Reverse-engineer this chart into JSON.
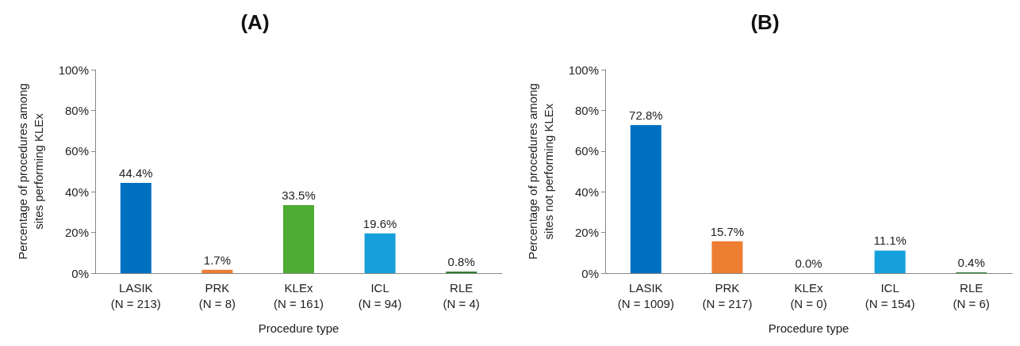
{
  "chart_data": [
    {
      "type": "bar",
      "title": "(A)",
      "xlabel": "Procedure type",
      "ylabel": "Percentage of procedures among\nsites performing KLEx",
      "categories": [
        "LASIK\n(N = 213)",
        "PRK\n(N = 8)",
        "KLEx\n(N = 161)",
        "ICL\n(N = 94)",
        "RLE\n(N = 4)"
      ],
      "values": [
        44.4,
        1.7,
        33.5,
        19.6,
        0.8
      ],
      "colors": [
        "#0070c0",
        "#ed7d31",
        "#4eac34",
        "#16a0db",
        "#2e7d32"
      ],
      "value_labels": [
        "44.4%",
        "1.7%",
        "33.5%",
        "19.6%",
        "0.8%"
      ],
      "ylim": [
        0,
        100
      ],
      "yticks": [
        {
          "value": 0,
          "label": "0%"
        },
        {
          "value": 20,
          "label": "20%"
        },
        {
          "value": 40,
          "label": "40%"
        },
        {
          "value": 60,
          "label": "60%"
        },
        {
          "value": 80,
          "label": "80%"
        },
        {
          "value": 100,
          "label": "100%"
        }
      ],
      "grid": false
    },
    {
      "type": "bar",
      "title": "(B)",
      "xlabel": "Procedure type",
      "ylabel": "Percentage of procedures among\nsites not performing KLEx",
      "categories": [
        "LASIK\n(N = 1009)",
        "PRK\n(N = 217)",
        "KLEx\n(N = 0)",
        "ICL\n(N = 154)",
        "RLE\n(N = 6)"
      ],
      "values": [
        72.8,
        15.7,
        0.0,
        11.1,
        0.4
      ],
      "colors": [
        "#0070c0",
        "#ed7d31",
        "#4eac34",
        "#16a0db",
        "#2e7d32"
      ],
      "value_labels": [
        "72.8%",
        "15.7%",
        "0.0%",
        "11.1%",
        "0.4%"
      ],
      "ylim": [
        0,
        100
      ],
      "yticks": [
        {
          "value": 0,
          "label": "0%"
        },
        {
          "value": 20,
          "label": "20%"
        },
        {
          "value": 40,
          "label": "40%"
        },
        {
          "value": 60,
          "label": "60%"
        },
        {
          "value": 80,
          "label": "80%"
        },
        {
          "value": 100,
          "label": "100%"
        }
      ],
      "grid": false
    }
  ]
}
